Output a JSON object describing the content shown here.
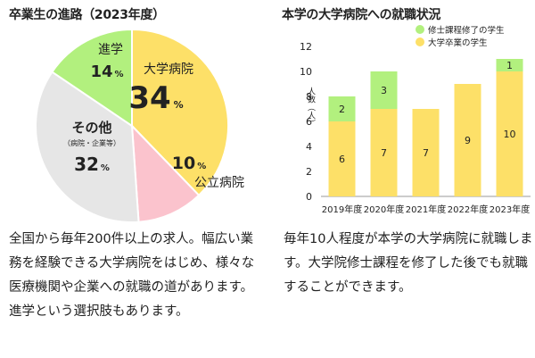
{
  "pie": {
    "title": "卒業生の進路（2023年度）",
    "unit": "%",
    "description": "全国から毎年200件以上の求人。幅広い業務を経験できる大学病院をはじめ、様々な医療機関や企業への就職の道があります。進学という選択肢もあります。"
  },
  "bar": {
    "title": "本学の大学病院への就職状況",
    "description": "毎年10人程度が本学の大学病院に就職します。大学院修士課程を修了した後でも就職することができます。"
  },
  "chart_data": [
    {
      "type": "pie",
      "title": "卒業生の進路（2023年度）",
      "slices": [
        {
          "label": "大学病院",
          "value": 34,
          "color": "#fde068"
        },
        {
          "label": "公立病院",
          "value": 10,
          "color": "#fbc3cd"
        },
        {
          "label": "その他",
          "sublabel": "（病院・企業等）",
          "value": 32,
          "color": "#e6e6e6"
        },
        {
          "label": "進学",
          "value": 14,
          "color": "#b2f07e"
        }
      ]
    },
    {
      "type": "bar",
      "stacked": true,
      "title": "本学の大学病院への就職状況",
      "ylabel": "人数（人）",
      "ylim": [
        0,
        12
      ],
      "yticks": [
        0,
        2,
        4,
        6,
        8,
        10,
        12
      ],
      "categories": [
        "2019年度",
        "2020年度",
        "2021年度",
        "2022年度",
        "2023年度"
      ],
      "legend_position": "top-right",
      "series": [
        {
          "name": "大学卒業の学生",
          "color": "#fde068",
          "values": [
            6,
            7,
            7,
            9,
            10
          ]
        },
        {
          "name": "修士課程修了の学生",
          "color": "#b2f07e",
          "values": [
            2,
            3,
            0,
            0,
            1
          ]
        }
      ]
    }
  ]
}
